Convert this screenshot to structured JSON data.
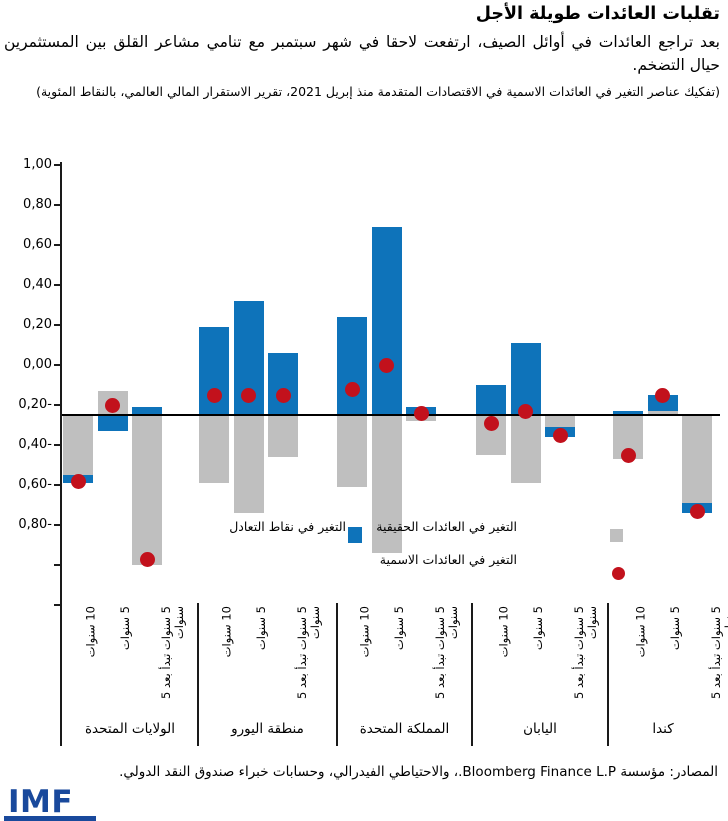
{
  "header": {
    "title": "تقلبات العائدات طويلة الأجل",
    "subtitle": "بعد تراجع العائدات في أوائل الصيف، ارتفعت لاحقا في شهر سبتمبر مع تنامي مشاعر القلق بين المستثمرين حيال التضخم.",
    "note": "(تفكيك عناصر التغير في العائدات الاسمية في الاقتصادات المتقدمة منذ إبريل 2021، تقرير الاستقرار المالي العالمي، بالنقاط المئوية)"
  },
  "chart_data": {
    "type": "bar",
    "title": "تقلبات العائدات طويلة الأجل",
    "ylabel": "بالنقاط المئوية",
    "grid": false,
    "legend_position": "inside-plot",
    "y_axis": {
      "tick_labels": [
        "1,00",
        "0,80",
        "0,60",
        "0,40",
        "0,20",
        "0,00",
        "0,20-",
        "0,40-",
        "0,60-",
        "0,80-",
        "",
        ""
      ],
      "tick_values": [
        1.0,
        0.8,
        0.6,
        0.4,
        0.2,
        0.0,
        -0.2,
        -0.4,
        -0.6,
        -0.8,
        -1.0,
        -1.2
      ]
    },
    "bar_tenors": [
      {
        "label": "10 سنوات",
        "lines": [
          "10 سنوات"
        ]
      },
      {
        "label": "5 سنوات",
        "lines": [
          "5 سنوات"
        ]
      },
      {
        "label": "5 سنوات تبدأ بعد 5 سنوات",
        "lines": [
          "5 سنوات تبدأ بعد 5",
          "سنوات"
        ]
      }
    ],
    "groups": [
      {
        "name": "الولايات المتحدة",
        "bars": [
          {
            "tenor": "10 سنوات",
            "breakeven": -0.04,
            "real": -0.3,
            "nominal": -0.33
          },
          {
            "tenor": "5 سنوات",
            "breakeven": -0.08,
            "real": 0.12,
            "nominal": 0.05
          },
          {
            "tenor": "5 سنوات تبدأ بعد 5 سنوات",
            "breakeven": 0.04,
            "real": -0.75,
            "nominal": -0.72
          }
        ]
      },
      {
        "name": "منطقة اليورو",
        "bars": [
          {
            "tenor": "10 سنوات",
            "breakeven": 0.44,
            "real": -0.34,
            "nominal": 0.1
          },
          {
            "tenor": "5 سنوات",
            "breakeven": 0.57,
            "real": -0.49,
            "nominal": 0.1
          },
          {
            "tenor": "5 سنوات تبدأ بعد 5 سنوات",
            "breakeven": 0.31,
            "real": -0.21,
            "nominal": 0.1
          }
        ]
      },
      {
        "name": "المملكة المتحدة",
        "bars": [
          {
            "tenor": "10 سنوات",
            "breakeven": 0.49,
            "real": -0.36,
            "nominal": 0.13
          },
          {
            "tenor": "5 سنوات",
            "breakeven": 0.94,
            "real": -0.69,
            "nominal": 0.25
          },
          {
            "tenor": "5 سنوات تبدأ بعد 5 سنوات",
            "breakeven": 0.04,
            "real": -0.03,
            "nominal": 0.01
          }
        ]
      },
      {
        "name": "اليابان",
        "bars": [
          {
            "tenor": "10 سنوات",
            "breakeven": 0.15,
            "real": -0.2,
            "nominal": -0.04
          },
          {
            "tenor": "5 سنوات",
            "breakeven": 0.36,
            "real": -0.34,
            "nominal": 0.02
          },
          {
            "tenor": "5 سنوات تبدأ بعد 5 سنوات",
            "breakeven": -0.05,
            "real": -0.06,
            "nominal": -0.1
          }
        ]
      },
      {
        "name": "كندا",
        "bars": [
          {
            "tenor": "10 سنوات",
            "breakeven": 0.02,
            "real": -0.22,
            "nominal": -0.2
          },
          {
            "tenor": "5 سنوات",
            "breakeven": 0.08,
            "real": 0.02,
            "nominal": 0.1
          },
          {
            "tenor": "5 سنوات تبدأ بعد 5 سنوات",
            "breakeven": -0.05,
            "real": -0.44,
            "nominal": -0.48
          }
        ]
      }
    ],
    "legend": [
      {
        "label": "التغير في نقاط التعادل",
        "marker": "square",
        "color": "#0e73ba"
      },
      {
        "label": "التغير في العائدات الحقيقية",
        "marker": "square",
        "color": "#bfbfbf"
      },
      {
        "label": "التغير في العائدات الاسمية",
        "marker": "circle",
        "color": "#c2111c"
      }
    ]
  },
  "colors": {
    "breakeven_blue": "#0e73ba",
    "real_gray": "#bfbfbf",
    "nominal_red": "#c2111c",
    "axis_black": "#1a1a1a",
    "imf_blue": "#19499c"
  },
  "footer": {
    "sources": "المصادر: مؤسسة Bloomberg Finance L.P.، والاحتياطي الفيدرالي، وحسابات خبراء صندوق النقد الدولي.",
    "logo": "IMF"
  }
}
